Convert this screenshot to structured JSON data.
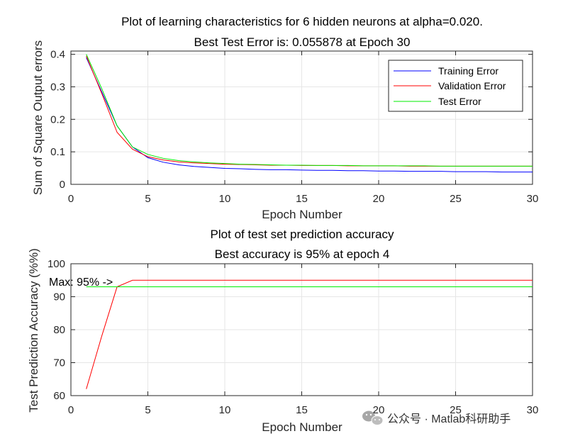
{
  "chart_data": [
    {
      "type": "line",
      "title": "Plot of learning characteristics for 6 hidden neurons at alpha=0.020.",
      "subtitle": "Best Test Error is: 0.055878 at Epoch 30",
      "xlabel": "Epoch Number",
      "ylabel": "Sum of Square Output errors",
      "xlim": [
        0,
        30
      ],
      "ylim": [
        0,
        0.41
      ],
      "xticks": [
        0,
        5,
        10,
        15,
        20,
        25,
        30
      ],
      "yticks": [
        0,
        0.1,
        0.2,
        0.3,
        0.4
      ],
      "grid": true,
      "legend_position": "top-right",
      "x": [
        1,
        2,
        3,
        4,
        5,
        6,
        7,
        8,
        9,
        10,
        11,
        12,
        13,
        14,
        15,
        16,
        17,
        18,
        19,
        20,
        21,
        22,
        23,
        24,
        25,
        26,
        27,
        28,
        29,
        30
      ],
      "series": [
        {
          "name": "Training Error",
          "color": "#0000ff",
          "values": [
            0.39,
            0.285,
            0.18,
            0.115,
            0.082,
            0.068,
            0.06,
            0.055,
            0.052,
            0.049,
            0.048,
            0.046,
            0.045,
            0.045,
            0.044,
            0.043,
            0.043,
            0.042,
            0.042,
            0.041,
            0.041,
            0.04,
            0.04,
            0.04,
            0.039,
            0.039,
            0.039,
            0.038,
            0.038,
            0.038
          ]
        },
        {
          "name": "Validation Error",
          "color": "#ff0000",
          "values": [
            0.395,
            0.28,
            0.16,
            0.108,
            0.085,
            0.075,
            0.069,
            0.066,
            0.064,
            0.062,
            0.061,
            0.06,
            0.059,
            0.059,
            0.058,
            0.058,
            0.058,
            0.057,
            0.057,
            0.057,
            0.057,
            0.056,
            0.056,
            0.056,
            0.056,
            0.056,
            0.056,
            0.056,
            0.056,
            0.056
          ]
        },
        {
          "name": "Test Error",
          "color": "#00ee00",
          "values": [
            0.4,
            0.295,
            0.18,
            0.115,
            0.092,
            0.08,
            0.073,
            0.069,
            0.066,
            0.064,
            0.062,
            0.061,
            0.06,
            0.059,
            0.059,
            0.058,
            0.058,
            0.058,
            0.057,
            0.057,
            0.057,
            0.057,
            0.057,
            0.056,
            0.056,
            0.056,
            0.056,
            0.056,
            0.056,
            0.056
          ]
        }
      ]
    },
    {
      "type": "line",
      "title": "Plot of test set prediction accuracy",
      "subtitle": "Best accuracy is 95% at epoch 4",
      "xlabel": "Epoch Number",
      "ylabel": "Test Prediction Accuracy (%%)",
      "xlim": [
        0,
        30
      ],
      "ylim": [
        60,
        100
      ],
      "xticks": [
        0,
        5,
        10,
        15,
        20,
        25,
        30
      ],
      "yticks": [
        60,
        70,
        80,
        90,
        100
      ],
      "grid": true,
      "annotation": {
        "text": "Max: 95% ->",
        "x": 4,
        "y": 95
      },
      "x": [
        1,
        2,
        3,
        4,
        5,
        6,
        7,
        8,
        9,
        10,
        11,
        12,
        13,
        14,
        15,
        16,
        17,
        18,
        19,
        20,
        21,
        22,
        23,
        24,
        25,
        26,
        27,
        28,
        29,
        30
      ],
      "series": [
        {
          "color": "#ff0000",
          "values": [
            62,
            78,
            93,
            95,
            95,
            95,
            95,
            95,
            95,
            95,
            95,
            95,
            95,
            95,
            95,
            95,
            95,
            95,
            95,
            95,
            95,
            95,
            95,
            95,
            95,
            95,
            95,
            95,
            95,
            95
          ]
        },
        {
          "color": "#00ee00",
          "values": [
            93,
            93,
            93,
            93,
            93,
            93,
            93,
            93,
            93,
            93,
            93,
            93,
            93,
            93,
            93,
            93,
            93,
            93,
            93,
            93,
            93,
            93,
            93,
            93,
            93,
            93,
            93,
            93,
            93,
            93
          ]
        }
      ]
    }
  ],
  "watermark": {
    "icon": "wechat-icon",
    "text": "公众号 · Matlab科研助手"
  }
}
